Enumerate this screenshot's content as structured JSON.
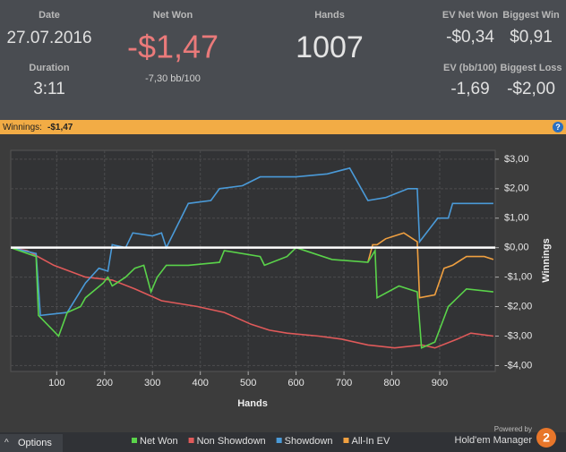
{
  "header": {
    "date_label": "Date",
    "date": "27.07.2016",
    "duration_label": "Duration",
    "duration": "3:11",
    "net_won_label": "Net Won",
    "net_won": "-$1,47",
    "net_won_bb": "-7,30 bb/100",
    "hands_label": "Hands",
    "hands": "1007",
    "ev_net_won_label": "EV Net Won",
    "ev_net_won": "-$0,34",
    "biggest_win_label": "Biggest Win",
    "biggest_win": "$0,91",
    "ev_bb_label": "EV (bb/100)",
    "ev_bb": "-1,69",
    "biggest_loss_label": "Biggest Loss",
    "biggest_loss": "-$2,00"
  },
  "bar": {
    "label": "Winnings:",
    "value": "-$1,47",
    "help": "?"
  },
  "chart_data": {
    "type": "line",
    "xlabel": "Hands",
    "ylabel": "Winnings",
    "xlim": [
      4,
      1016
    ],
    "ylim": [
      -4.2,
      3.3
    ],
    "xticks": [
      100,
      200,
      300,
      400,
      500,
      600,
      700,
      800,
      900
    ],
    "yticks": [
      {
        "value": 3,
        "label": "$3,00"
      },
      {
        "value": 2,
        "label": "$2,00"
      },
      {
        "value": 1,
        "label": "$1,00"
      },
      {
        "value": 0,
        "label": "$0,00"
      },
      {
        "value": -1,
        "label": "-$1,00"
      },
      {
        "value": -2,
        "label": "-$2,00"
      },
      {
        "value": -3,
        "label": "-$3,00"
      },
      {
        "value": -4,
        "label": "-$4,00"
      }
    ],
    "grid": true,
    "zero_line": true,
    "series": [
      {
        "name": "Net Won",
        "color": "#5ad34a",
        "x": [
          4,
          57,
          62,
          104,
          122,
          150,
          160,
          197,
          207,
          216,
          244,
          263,
          282,
          297,
          310,
          329,
          375,
          440,
          450,
          525,
          534,
          581,
          600,
          675,
          750,
          765,
          769,
          815,
          853,
          862,
          890,
          918,
          956,
          1012
        ],
        "values": [
          0,
          -0.3,
          -2.3,
          -3.0,
          -2.2,
          -2.0,
          -1.7,
          -1.2,
          -1.0,
          -1.3,
          -1.0,
          -0.7,
          -0.6,
          -1.5,
          -1.0,
          -0.6,
          -0.6,
          -0.5,
          -0.1,
          -0.3,
          -0.6,
          -0.3,
          0,
          -0.4,
          -0.5,
          -0.1,
          -1.7,
          -1.3,
          -1.5,
          -3.4,
          -3.2,
          -2.0,
          -1.4,
          -1.5
        ]
      },
      {
        "name": "Non Showdown",
        "color": "#e05a5a",
        "x": [
          4,
          38,
          94,
          160,
          216,
          263,
          319,
          394,
          450,
          506,
          544,
          581,
          647,
          694,
          750,
          806,
          862,
          890,
          937,
          965,
          1012
        ],
        "values": [
          0,
          -0.1,
          -0.6,
          -1.0,
          -1.1,
          -1.4,
          -1.8,
          -2.0,
          -2.2,
          -2.6,
          -2.8,
          -2.9,
          -3.0,
          -3.1,
          -3.3,
          -3.4,
          -3.3,
          -3.4,
          -3.1,
          -2.9,
          -3.0
        ]
      },
      {
        "name": "Showdown",
        "color": "#4a9ad8",
        "x": [
          4,
          57,
          66,
          122,
          160,
          188,
          207,
          216,
          244,
          259,
          300,
          319,
          329,
          375,
          422,
          440,
          488,
          525,
          600,
          665,
          712,
          750,
          787,
          834,
          853,
          858,
          896,
          918,
          927,
          1012
        ],
        "values": [
          0,
          -0.2,
          -2.3,
          -2.2,
          -1.2,
          -0.7,
          -0.8,
          0.1,
          0,
          0.5,
          0.4,
          0.5,
          0,
          1.5,
          1.6,
          2.0,
          2.1,
          2.4,
          2.4,
          2.5,
          2.7,
          1.6,
          1.7,
          2.0,
          2.0,
          0.2,
          1.0,
          1.0,
          1.5,
          1.5
        ]
      },
      {
        "name": "All-In EV",
        "color": "#f0a040",
        "x": [
          750,
          760,
          769,
          787,
          825,
          853,
          858,
          890,
          909,
          927,
          956,
          993,
          1012
        ],
        "values": [
          -0.5,
          0.1,
          0.1,
          0.3,
          0.5,
          0.2,
          -1.7,
          -1.6,
          -0.7,
          -0.6,
          -0.3,
          -0.3,
          -0.4
        ]
      }
    ]
  },
  "footer": {
    "options": "Options",
    "powered_by": "Powered by",
    "brand": "Hold'em Manager",
    "brand_number": "2"
  }
}
